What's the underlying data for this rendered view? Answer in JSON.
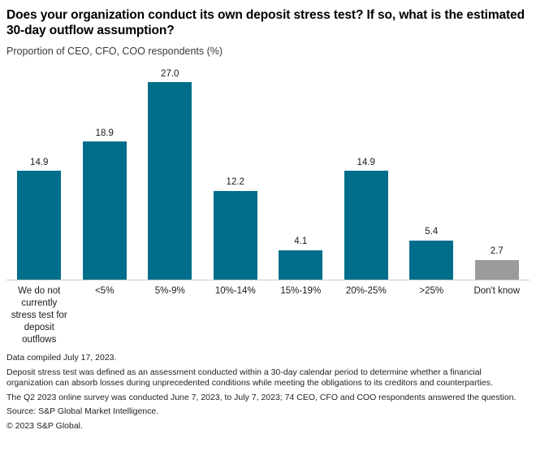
{
  "header": {
    "title": "Does your organization conduct its own deposit stress test? If so, what is the estimated 30-day outflow assumption?",
    "subtitle": "Proportion of CEO, CFO, COO respondents (%)"
  },
  "chart_data": {
    "type": "bar",
    "title": "Does your organization conduct its own deposit stress test? If so, what is the estimated 30-day outflow assumption?",
    "subtitle": "Proportion of CEO, CFO, COO respondents (%)",
    "ylabel": "Proportion of CEO, CFO, COO respondents (%)",
    "categories": [
      "We do not currently stress test for deposit outflows",
      "<5%",
      "5%-9%",
      "10%-14%",
      "15%-19%",
      "20%-25%",
      ">25%",
      "Don't know"
    ],
    "values": [
      14.9,
      18.9,
      27.0,
      12.2,
      4.1,
      14.9,
      5.4,
      2.7
    ],
    "value_labels": [
      "14.9",
      "18.9",
      "27.0",
      "12.2",
      "4.1",
      "14.9",
      "5.4",
      "2.7"
    ],
    "ylim": [
      0,
      28
    ],
    "grid": false,
    "legend": false,
    "data_labels_position": "above-bars",
    "bar_colors": [
      "#006e8a",
      "#006e8a",
      "#006e8a",
      "#006e8a",
      "#006e8a",
      "#006e8a",
      "#006e8a",
      "#9b9b9b"
    ],
    "colors": {
      "bar_primary": "#006e8a",
      "bar_dont_know": "#9b9b9b",
      "axis_line": "#c9c9c9"
    }
  },
  "footnotes": [
    "Data compiled July 17, 2023.",
    "Deposit stress test was defined as an assessment conducted within a 30-day calendar period to determine whether a financial organization can absorb losses during unprecedented conditions while meeting the obligations to its creditors and counterparties.",
    "The Q2 2023 online survey was conducted June 7, 2023, to July 7, 2023; 74 CEO, CFO and COO respondents answered the question.",
    "Source: S&P Global Market Intelligence.",
    "© 2023 S&P Global."
  ]
}
